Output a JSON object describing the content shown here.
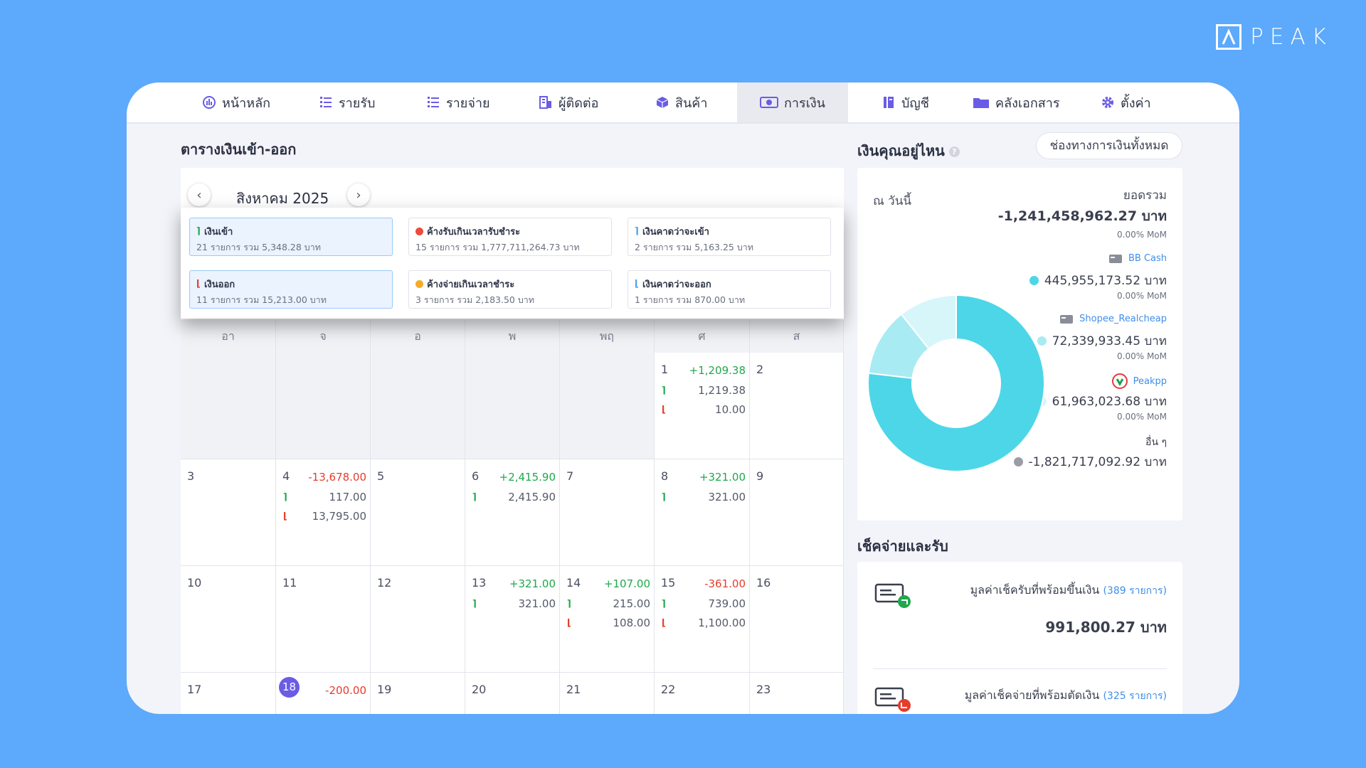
{
  "brand": "PEAK",
  "nav": [
    {
      "label": "หน้าหลัก",
      "icon": "dashboard-icon"
    },
    {
      "label": "รายรับ",
      "icon": "income-list-icon"
    },
    {
      "label": "รายจ่าย",
      "icon": "expense-list-icon"
    },
    {
      "label": "ผู้ติดต่อ",
      "icon": "contacts-icon"
    },
    {
      "label": "สินค้า",
      "icon": "product-box-icon"
    },
    {
      "label": "การเงิน",
      "icon": "money-icon",
      "active": true
    },
    {
      "label": "บัญชี",
      "icon": "ledger-book-icon"
    },
    {
      "label": "คลังเอกสาร",
      "icon": "folder-icon"
    },
    {
      "label": "ตั้งค่า",
      "icon": "gear-icon"
    }
  ],
  "calendar": {
    "title": "ตารางเงินเข้า-ออก",
    "month": "สิงหาคม 2025",
    "weekdays": [
      "อา",
      "จ",
      "อ",
      "พ",
      "พฤ",
      "ศ",
      "ส"
    ],
    "summary": [
      {
        "title": "เงินเข้า",
        "sub": "21 รายการ รวม 5,348.28 บาท",
        "kind": "in",
        "selected": true
      },
      {
        "title": "ค้างรับเกินเวลารับชำระ",
        "sub": "15 รายการ รวม 1,777,711,264.73 บาท",
        "kind": "red-dot"
      },
      {
        "title": "เงินคาดว่าจะเข้า",
        "sub": "2 รายการ รวม 5,163.25 บาท",
        "kind": "expect-in"
      },
      {
        "title": "เงินออก",
        "sub": "11 รายการ รวม 15,213.00 บาท",
        "kind": "out",
        "selected": true
      },
      {
        "title": "ค้างจ่ายเกินเวลาชำระ",
        "sub": "3 รายการ รวม 2,183.50 บาท",
        "kind": "orange-dot"
      },
      {
        "title": "เงินคาดว่าจะออก",
        "sub": "1 รายการ รวม 870.00 บาท",
        "kind": "expect-out"
      }
    ],
    "days": [
      {
        "day": "1",
        "net": "+1,209.38",
        "in": "1,219.38",
        "out": "10.00"
      },
      {
        "day": "2"
      },
      {
        "day": "3"
      },
      {
        "day": "4",
        "net": "-13,678.00",
        "in": "117.00",
        "out": "13,795.00"
      },
      {
        "day": "5"
      },
      {
        "day": "6",
        "net": "+2,415.90",
        "in": "2,415.90"
      },
      {
        "day": "7"
      },
      {
        "day": "8",
        "net": "+321.00",
        "in": "321.00"
      },
      {
        "day": "9"
      },
      {
        "day": "10"
      },
      {
        "day": "11"
      },
      {
        "day": "12"
      },
      {
        "day": "13",
        "net": "+321.00",
        "in": "321.00"
      },
      {
        "day": "14",
        "net": "+107.00",
        "in": "215.00",
        "out": "108.00"
      },
      {
        "day": "15",
        "net": "-361.00",
        "in": "739.00",
        "out": "1,100.00"
      },
      {
        "day": "16"
      },
      {
        "day": "17"
      },
      {
        "day": "18",
        "net": "-200.00",
        "today": true
      },
      {
        "day": "19"
      },
      {
        "day": "20"
      },
      {
        "day": "21"
      },
      {
        "day": "22"
      },
      {
        "day": "23"
      }
    ]
  },
  "money": {
    "title": "เงินคุณอยู่ไหน",
    "help": "?",
    "all_button": "ช่องทางการเงินทั้งหมด",
    "as_of": "ณ วันนี้",
    "total_label": "ยอดรวม",
    "total_value": "-1,241,458,962.27 บาท",
    "total_mom": "0.00% MoM",
    "accounts": [
      {
        "name": "BB Cash",
        "value": "445,955,173.52 บาท",
        "mom": "0.00% MoM",
        "color": "#4dd6e8",
        "icon": "bank-card-icon"
      },
      {
        "name": "Shopee_Realcheap",
        "value": "72,339,933.45 บาท",
        "mom": "0.00% MoM",
        "color": "#a9ebf3",
        "icon": "bank-card-icon"
      },
      {
        "name": "Peakpp",
        "value": "61,963,023.68 บาท",
        "mom": "0.00% MoM",
        "color": "#d6f6fa",
        "icon": "bank-logo-icon"
      }
    ],
    "others": {
      "name": "อื่น ๆ",
      "value": "-1,821,717,092.92 บาท",
      "color": "#9a9ca6"
    },
    "chart_data": {
      "type": "pie",
      "categories": [
        "BB Cash",
        "Shopee_Realcheap",
        "Peakpp"
      ],
      "values": [
        445955173.52,
        72339933.45,
        61963023.68
      ],
      "colors": [
        "#4dd6e8",
        "#a9ebf3",
        "#d6f6fa"
      ]
    }
  },
  "checks": {
    "title": "เช็คจ่ายและรับ",
    "receive_label": "มูลค่าเช็ครับที่พร้อมขึ้นเงิน",
    "receive_count": "(389 รายการ)",
    "receive_value": "991,800.27 บาท",
    "pay_label": "มูลค่าเช็คจ่ายที่พร้อมตัดเงิน",
    "pay_count": "(325 รายการ)"
  }
}
